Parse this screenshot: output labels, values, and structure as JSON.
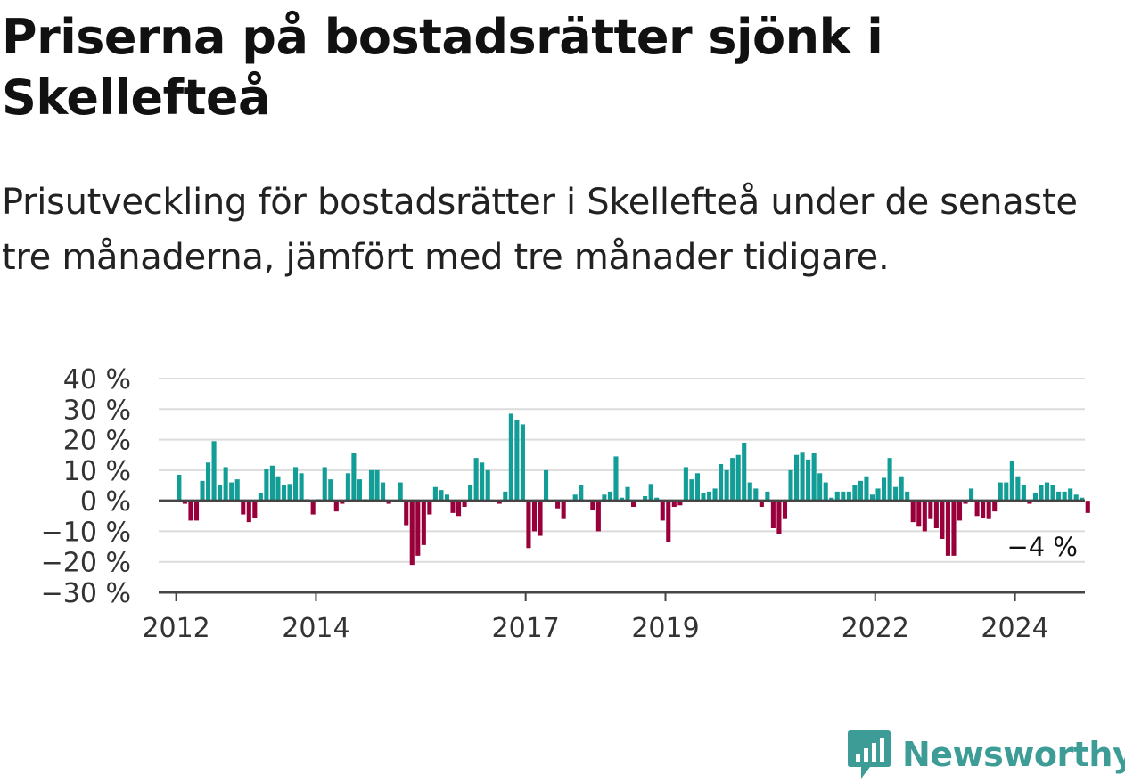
{
  "header": {
    "title": "Priserna på bostadsrätter sjönk i Skellefteå",
    "subtitle": "Prisutveckling för bostadsrätter i Skellefteå under de senaste tre månaderna, jämfört med tre månader tidigare."
  },
  "brand": {
    "name": "Newsworthy",
    "color": "#3d9c96"
  },
  "chart_data": {
    "type": "bar",
    "xlim": [
      2011.75,
      2025.0
    ],
    "ylim": [
      -30,
      40
    ],
    "y_ticks": [
      40,
      30,
      20,
      10,
      0,
      -10,
      -20,
      -30
    ],
    "y_tick_labels": [
      "40 %",
      "30 %",
      "20 %",
      "10 %",
      "0 %",
      "−10 %",
      "−20 %",
      "−30 %"
    ],
    "x_ticks": [
      2012,
      2014,
      2017,
      2019,
      2022,
      2024
    ],
    "x_tick_labels": [
      "2012",
      "2014",
      "2017",
      "2019",
      "2022",
      "2024"
    ],
    "grid": true,
    "positive_color": "#129d96",
    "negative_color": "#99003b",
    "annotation": {
      "text": "−4 %",
      "x": 2024.7,
      "y": -4
    },
    "values": [
      8.5,
      -1,
      -6.5,
      -6.5,
      6.5,
      12.5,
      19.5,
      5,
      11,
      6,
      7,
      -4.5,
      -7,
      -5.5,
      2.5,
      10.5,
      11.5,
      8,
      5,
      5.5,
      11,
      9,
      0.5,
      -4.5,
      0.5,
      11,
      7,
      -3.5,
      -1,
      9,
      15.5,
      7,
      0.5,
      10,
      10,
      6,
      -1,
      0,
      6,
      -8,
      -21,
      -18,
      -14.5,
      -4.5,
      4.5,
      3.5,
      2,
      -4,
      -5,
      -2,
      5,
      14,
      12.5,
      10,
      0,
      -1,
      3,
      28.5,
      26.5,
      25,
      -15.5,
      -10,
      -11.5,
      10,
      0,
      -2.5,
      -6,
      0,
      2,
      5,
      0,
      -3,
      -10,
      2,
      3,
      14.5,
      1,
      4.5,
      -2,
      0,
      1.5,
      5.5,
      1,
      -6.5,
      -13.5,
      -2,
      -1.5,
      11,
      7,
      9,
      2.5,
      3,
      4,
      12,
      10,
      14,
      15,
      19,
      6,
      4,
      -2,
      3,
      -9,
      -11,
      -6,
      10,
      15,
      16,
      13.5,
      15.5,
      9,
      6,
      1,
      3,
      3,
      3,
      5,
      6.5,
      8,
      2,
      4,
      7.5,
      14,
      4.5,
      8,
      3,
      -7,
      -8.5,
      -10,
      -6,
      -9,
      -12.5,
      -18,
      -18,
      -6.5,
      -1,
      4,
      -5,
      -5.5,
      -6,
      -3.5,
      6,
      6,
      13,
      8,
      5,
      -1,
      2.5,
      5,
      6,
      5,
      3,
      3,
      4,
      2,
      1,
      -4
    ]
  }
}
